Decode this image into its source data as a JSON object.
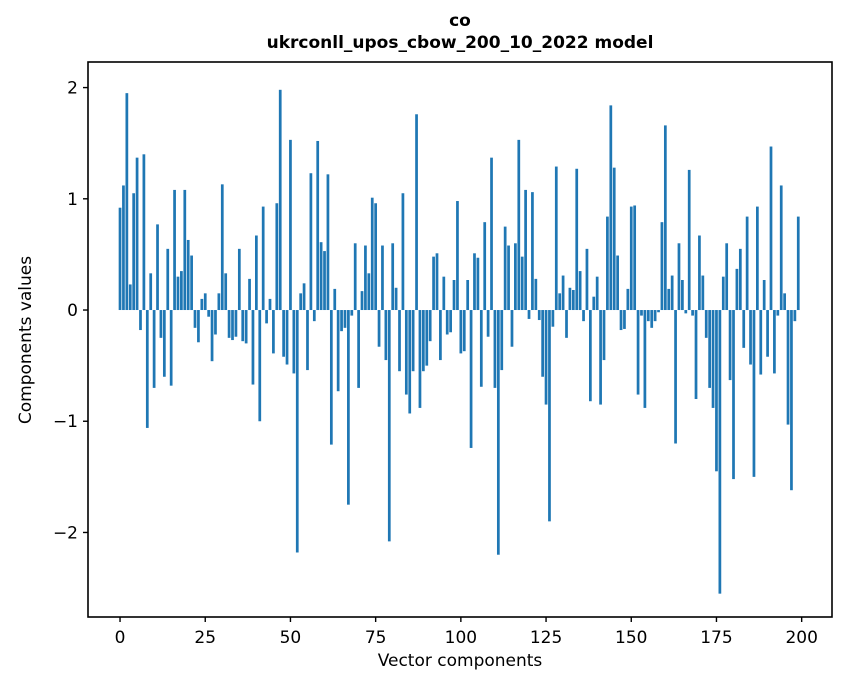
{
  "title": "co",
  "subtitle": "ukrconll_upos_cbow_200_10_2022 model",
  "chart_data": {
    "type": "bar",
    "title": "co",
    "subtitle": "ukrconll_upos_cbow_200_10_2022 model",
    "xlabel": "Vector components",
    "ylabel": "Components values",
    "bar_color": "#1f77b4",
    "axis_color": "#000000",
    "background_color": "#ffffff",
    "grid": false,
    "legend": false,
    "n_components": 200,
    "x_ticks": [
      0,
      25,
      50,
      75,
      100,
      125,
      150,
      175,
      200
    ],
    "y_ticks": [
      2,
      1,
      0,
      -1,
      -2
    ],
    "xlim": [
      -9.4,
      208.9
    ],
    "ylim": [
      -2.76,
      2.23
    ],
    "values": [
      0.92,
      1.12,
      1.95,
      0.23,
      1.05,
      1.37,
      -0.18,
      1.4,
      -1.06,
      0.33,
      -0.7,
      0.77,
      -0.25,
      -0.6,
      0.55,
      -0.68,
      1.08,
      0.3,
      0.35,
      1.08,
      0.63,
      0.49,
      -0.16,
      -0.29,
      0.1,
      0.15,
      -0.06,
      -0.46,
      -0.22,
      0.15,
      1.13,
      0.33,
      -0.25,
      -0.27,
      -0.24,
      0.55,
      -0.28,
      -0.3,
      0.28,
      -0.67,
      0.67,
      -1.0,
      0.93,
      -0.12,
      0.1,
      -0.39,
      0.96,
      1.98,
      -0.42,
      -0.49,
      1.53,
      -0.57,
      -2.18,
      0.15,
      0.24,
      -0.54,
      1.23,
      -0.1,
      1.52,
      0.61,
      0.53,
      1.22,
      -1.21,
      0.19,
      -0.73,
      -0.19,
      -0.16,
      -1.75,
      -0.05,
      0.6,
      -0.7,
      0.17,
      0.58,
      0.33,
      1.01,
      0.96,
      -0.33,
      0.58,
      -0.45,
      -2.08,
      0.6,
      0.2,
      -0.55,
      1.05,
      -0.76,
      -0.93,
      -0.55,
      1.76,
      -0.88,
      -0.55,
      -0.5,
      -0.28,
      0.48,
      0.51,
      -0.45,
      0.3,
      -0.22,
      -0.2,
      0.27,
      0.98,
      -0.39,
      -0.37,
      0.27,
      -1.24,
      0.51,
      0.47,
      -0.69,
      0.79,
      -0.24,
      1.37,
      -0.7,
      -2.2,
      -0.54,
      0.75,
      0.58,
      -0.33,
      0.6,
      1.53,
      0.48,
      1.08,
      -0.08,
      1.06,
      0.28,
      -0.09,
      -0.6,
      -0.85,
      -1.9,
      -0.15,
      1.29,
      0.15,
      0.31,
      -0.25,
      0.2,
      0.18,
      1.27,
      0.35,
      -0.1,
      0.55,
      -0.82,
      0.12,
      0.3,
      -0.85,
      -0.45,
      0.84,
      1.84,
      1.28,
      0.49,
      -0.18,
      -0.17,
      0.19,
      0.93,
      0.94,
      -0.76,
      -0.05,
      -0.88,
      -0.1,
      -0.16,
      -0.1,
      -0.02,
      0.79,
      1.66,
      0.19,
      0.31,
      -1.2,
      0.6,
      0.27,
      -0.03,
      1.26,
      -0.05,
      -0.8,
      0.67,
      0.31,
      -0.25,
      -0.7,
      -0.88,
      -1.45,
      -2.55,
      0.3,
      0.6,
      -0.63,
      -1.52,
      0.37,
      0.55,
      -0.34,
      0.84,
      -0.49,
      -1.5,
      0.93,
      -0.58,
      0.27,
      -0.42,
      1.47,
      -0.57,
      -0.05,
      1.12,
      0.15,
      -1.03,
      -1.62,
      -0.1,
      0.84
    ]
  }
}
